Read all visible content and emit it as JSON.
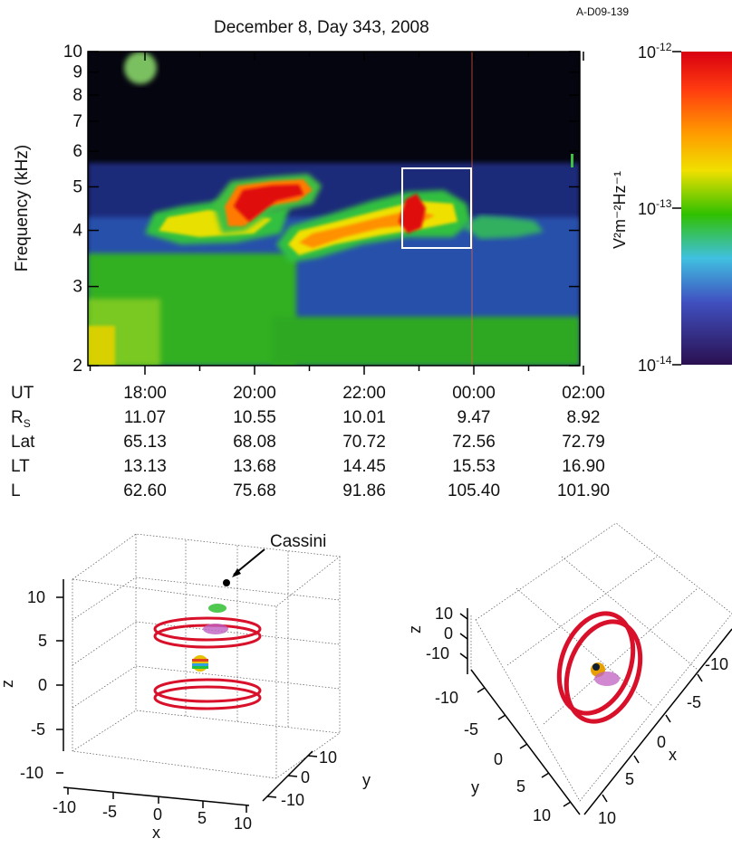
{
  "figure_id": "A-D09-139",
  "title": "December 8, Day 343, 2008",
  "colorbar": {
    "unit_label": "V²m⁻²Hz⁻¹",
    "ticks": [
      {
        "base": "10",
        "exp": "-12"
      },
      {
        "base": "10",
        "exp": "-13"
      },
      {
        "base": "10",
        "exp": "-14"
      }
    ],
    "colors": [
      "#e01010",
      "#ff5500",
      "#ffb000",
      "#e8e800",
      "#00c800",
      "#30b8e8",
      "#3040c0",
      "#301060"
    ]
  },
  "chart_data": [
    {
      "type": "heatmap",
      "title": "December 8, Day 343, 2008",
      "ylabel": "Frequency (kHz)",
      "yscale": "log",
      "ylim": [
        2,
        10
      ],
      "yticks": [
        "2",
        "3",
        "4",
        "5",
        "6",
        "7",
        "8",
        "9",
        "10"
      ],
      "xticks": [
        "18:00",
        "20:00",
        "22:00",
        "00:00",
        "02:00"
      ],
      "xlabel_row": "UT",
      "highlight_box": {
        "x_range": [
          "23:20",
          "00:00"
        ],
        "y_range_khz": [
          3.6,
          5.4
        ]
      },
      "emission_bands": [
        {
          "x_range": [
            "18:10",
            "20:30"
          ],
          "freq_khz": [
            3.8,
            4.6
          ],
          "level": "1e-13"
        },
        {
          "x_range": [
            "19:30",
            "21:30"
          ],
          "freq_khz": [
            4.2,
            5.1
          ],
          "level": "1e-12"
        },
        {
          "x_range": [
            "21:40",
            "00:30"
          ],
          "freq_khz": [
            3.6,
            4.7
          ],
          "level": "3e-13"
        },
        {
          "x_range": [
            "00:00",
            "01:00"
          ],
          "freq_khz": [
            3.8,
            4.1
          ],
          "level": "1e-13"
        }
      ]
    },
    {
      "type": "table",
      "rows": [
        {
          "label": "UT",
          "values": [
            "18:00",
            "20:00",
            "22:00",
            "00:00",
            "02:00"
          ]
        },
        {
          "label": "RS",
          "values": [
            "11.07",
            "10.55",
            "10.01",
            "9.47",
            "8.92"
          ]
        },
        {
          "label": "Lat",
          "values": [
            "65.13",
            "68.08",
            "70.72",
            "72.56",
            "72.79"
          ]
        },
        {
          "label": "LT",
          "values": [
            "13.13",
            "13.68",
            "14.45",
            "15.53",
            "16.90"
          ]
        },
        {
          "label": "L",
          "values": [
            "62.60",
            "75.68",
            "91.86",
            "105.40",
            "101.90"
          ]
        }
      ]
    },
    {
      "type": "scatter",
      "projection": "3d",
      "annotation": "Cassini",
      "axes": {
        "x": {
          "label": "x",
          "ticks": [
            "-10",
            "-5",
            "0",
            "5",
            "10"
          ]
        },
        "y": {
          "label": "y",
          "ticks": [
            "10",
            "0",
            "-10"
          ]
        },
        "z": {
          "label": "z",
          "ticks": [
            "10",
            "5",
            "0",
            "-5",
            "-10"
          ]
        }
      }
    },
    {
      "type": "scatter",
      "projection": "3d",
      "axes": {
        "x": {
          "label": "x",
          "ticks": [
            "-10",
            "-5",
            "0",
            "5",
            "10"
          ]
        },
        "y": {
          "label": "y",
          "ticks": [
            "-10",
            "-5",
            "0",
            "5",
            "10"
          ]
        },
        "z": {
          "label": "z",
          "ticks": [
            "10",
            "0",
            "-10"
          ]
        }
      }
    }
  ],
  "ephemeris_labels": {
    "ut": "UT",
    "rs_base": "R",
    "rs_sub": "S",
    "lat": "Lat",
    "lt": "LT",
    "l": "L"
  }
}
